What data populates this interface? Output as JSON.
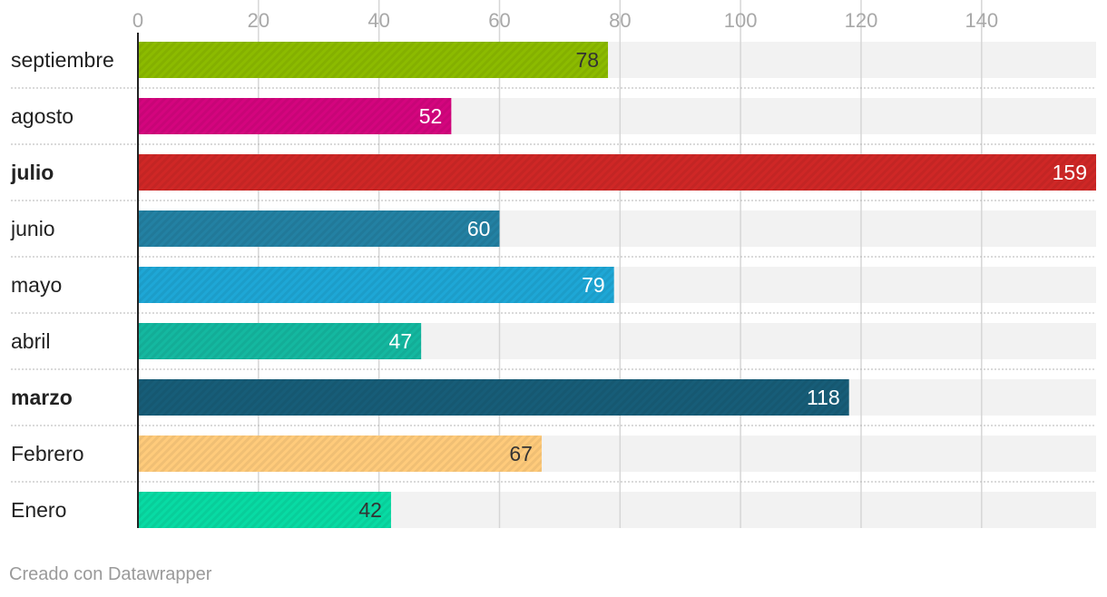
{
  "chart_data": {
    "type": "bar",
    "orientation": "horizontal",
    "categories": [
      "septiembre",
      "agosto",
      "julio",
      "junio",
      "mayo",
      "abril",
      "marzo",
      "Febrero",
      "Enero"
    ],
    "values": [
      78,
      52,
      159,
      60,
      79,
      47,
      118,
      67,
      42
    ],
    "colors": [
      "#8cbb00",
      "#d4057e",
      "#cf2726",
      "#2381a3",
      "#1ea7d6",
      "#14b8a0",
      "#175d78",
      "#ffcb7b",
      "#08dba4"
    ],
    "label_colors": [
      "#333333",
      "#ffffff",
      "#ffffff",
      "#ffffff",
      "#ffffff",
      "#ffffff",
      "#ffffff",
      "#333333",
      "#333333"
    ],
    "bold_categories": [
      "julio",
      "marzo"
    ],
    "x_ticks": [
      0,
      20,
      40,
      60,
      80,
      100,
      120,
      140
    ],
    "xlim": [
      0,
      159
    ],
    "grid": true,
    "background_track_color": "#f2f2f2"
  },
  "footer": {
    "credit": "Creado con Datawrapper"
  }
}
